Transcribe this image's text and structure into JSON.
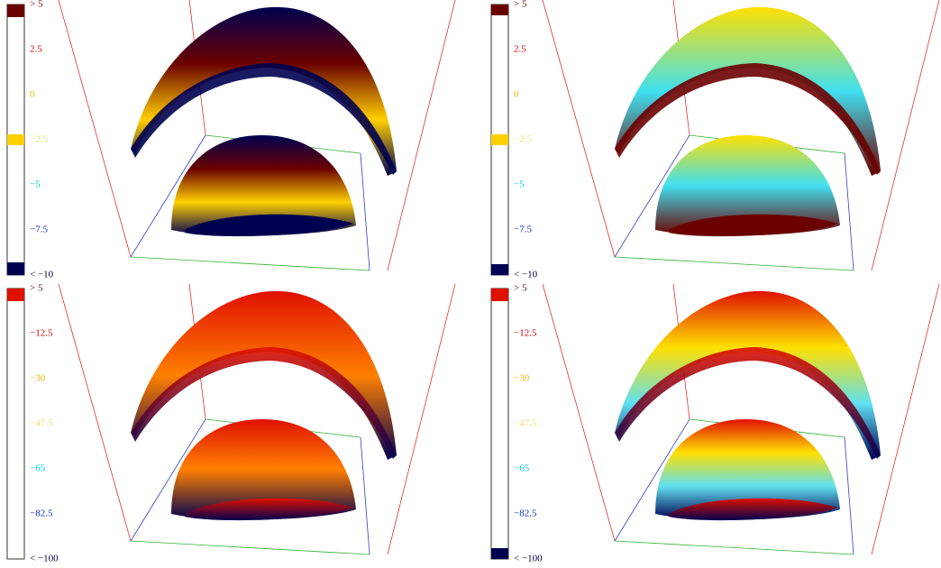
{
  "panels": [
    {
      "colorbar": {
        "ticks": [
          {
            "label": "> 5",
            "color": "#6b0000"
          },
          {
            "label": "2.5",
            "color": "#d40000"
          },
          {
            "label": "0",
            "color": "#e8b800"
          },
          {
            "label": "−2.5",
            "color": "#e8e070"
          },
          {
            "label": "−5",
            "color": "#00c8e0"
          },
          {
            "label": "−7.5",
            "color": "#1030c0"
          },
          {
            "label": "< −10",
            "color": "#000040"
          }
        ]
      }
    },
    {
      "colorbar": {
        "ticks": [
          {
            "label": "> 5",
            "color": "#6b0000"
          },
          {
            "label": "2.5",
            "color": "#d40000"
          },
          {
            "label": "0",
            "color": "#e8b800"
          },
          {
            "label": "−2.5",
            "color": "#e8e070"
          },
          {
            "label": "−5",
            "color": "#00c8e0"
          },
          {
            "label": "−7.5",
            "color": "#1030c0"
          },
          {
            "label": "< −10",
            "color": "#000040"
          }
        ]
      }
    },
    {
      "colorbar": {
        "ticks": [
          {
            "label": "> 5",
            "color": "#6b0000"
          },
          {
            "label": "−12.5",
            "color": "#d40000"
          },
          {
            "label": "−30",
            "color": "#e8b800"
          },
          {
            "label": "−47.5",
            "color": "#e8e070"
          },
          {
            "label": "−65",
            "color": "#00c8e0"
          },
          {
            "label": "−82.5",
            "color": "#1030c0"
          },
          {
            "label": "< −100",
            "color": "#000040"
          }
        ]
      }
    },
    {
      "colorbar": {
        "ticks": [
          {
            "label": "> 5",
            "color": "#6b0000"
          },
          {
            "label": "−12.5",
            "color": "#d40000"
          },
          {
            "label": "−30",
            "color": "#e8b800"
          },
          {
            "label": "−47.5",
            "color": "#e8e070"
          },
          {
            "label": "−65",
            "color": "#00c8e0"
          },
          {
            "label": "−82.5",
            "color": "#1030c0"
          },
          {
            "label": "< −100",
            "color": "#000040"
          }
        ]
      }
    }
  ]
}
